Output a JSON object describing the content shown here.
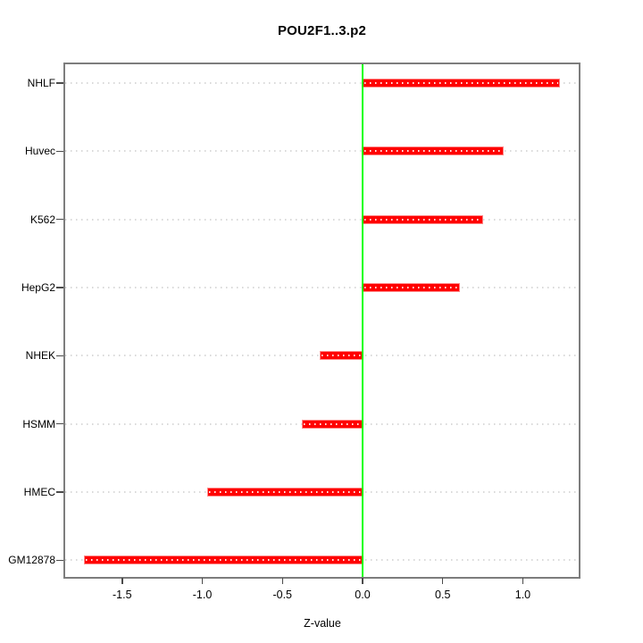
{
  "chart_data": {
    "type": "bar",
    "orientation": "horizontal",
    "title": "POU2F1..3.p2",
    "xlabel": "Z-value",
    "ylabel": "",
    "categories": [
      "NHLF",
      "Huvec",
      "K562",
      "HepG2",
      "NHEK",
      "HSMM",
      "HMEC",
      "GM12878"
    ],
    "values": [
      1.23,
      0.88,
      0.75,
      0.61,
      -0.27,
      -0.38,
      -0.97,
      -1.74
    ],
    "xlim": [
      -1.861,
      1.354
    ],
    "xticks": [
      -1.5,
      -1.0,
      -0.5,
      0.0,
      0.5,
      1.0
    ],
    "xtick_labels": [
      "-1.5",
      "-1.0",
      "-0.5",
      "0.0",
      "0.5",
      "1.0"
    ],
    "bar_color": "#ff0000",
    "zero_line_color": "#00ff00",
    "grid": "dotted-horizontal",
    "legend": "none",
    "frame_color": "#7d7d7d"
  }
}
